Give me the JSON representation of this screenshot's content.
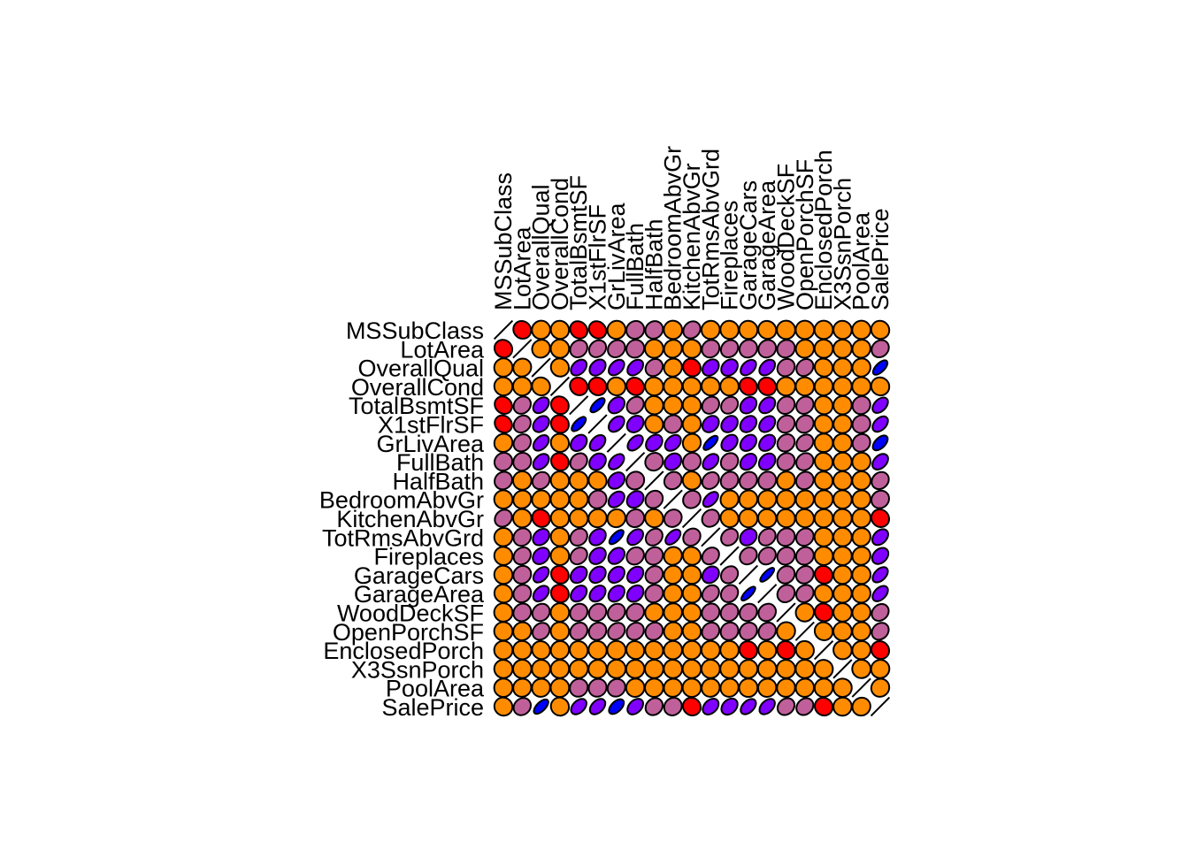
{
  "chart_data": {
    "type": "heatmap",
    "variables": [
      "MSSubClass",
      "LotArea",
      "OverallQual",
      "OverallCond",
      "TotalBsmtSF",
      "X1stFlrSF",
      "GrLivArea",
      "FullBath",
      "HalfBath",
      "BedroomAbvGr",
      "KitchenAbvGr",
      "TotRmsAbvGrd",
      "Fireplaces",
      "GarageCars",
      "GarageArea",
      "WoodDeckSF",
      "OpenPorchSF",
      "EnclosedPorch",
      "X3SsnPorch",
      "PoolArea",
      "SalePrice"
    ],
    "matrix": [
      [
        1.0,
        -0.14,
        0.03,
        -0.06,
        -0.24,
        -0.25,
        0.07,
        0.13,
        0.18,
        -0.02,
        0.28,
        0.04,
        -0.05,
        -0.04,
        -0.1,
        -0.01,
        -0.01,
        -0.01,
        -0.04,
        0.01,
        -0.08
      ],
      [
        -0.14,
        1.0,
        0.11,
        -0.01,
        0.26,
        0.3,
        0.26,
        0.13,
        0.01,
        0.12,
        -0.02,
        0.19,
        0.27,
        0.15,
        0.18,
        0.17,
        0.08,
        -0.02,
        0.02,
        0.08,
        0.26
      ],
      [
        0.03,
        0.11,
        1.0,
        -0.09,
        0.54,
        0.48,
        0.59,
        0.55,
        0.27,
        0.1,
        -0.18,
        0.43,
        0.4,
        0.6,
        0.56,
        0.24,
        0.31,
        -0.11,
        0.03,
        0.07,
        0.79
      ],
      [
        -0.06,
        -0.01,
        -0.09,
        1.0,
        -0.17,
        -0.14,
        -0.08,
        -0.19,
        -0.06,
        0.01,
        -0.09,
        -0.06,
        -0.02,
        -0.19,
        -0.15,
        -0.0,
        -0.03,
        0.07,
        0.03,
        -0.0,
        -0.08
      ],
      [
        -0.24,
        0.26,
        0.54,
        -0.17,
        1.0,
        0.82,
        0.45,
        0.32,
        -0.05,
        0.05,
        -0.07,
        0.29,
        0.34,
        0.43,
        0.49,
        0.23,
        0.25,
        -0.1,
        0.04,
        0.13,
        0.61
      ],
      [
        -0.25,
        0.3,
        0.48,
        -0.14,
        0.82,
        1.0,
        0.57,
        0.38,
        -0.12,
        0.13,
        0.07,
        0.41,
        0.41,
        0.44,
        0.49,
        0.24,
        0.21,
        -0.07,
        0.06,
        0.13,
        0.61
      ],
      [
        0.07,
        0.26,
        0.59,
        -0.08,
        0.45,
        0.57,
        1.0,
        0.63,
        0.42,
        0.52,
        0.1,
        0.83,
        0.46,
        0.47,
        0.47,
        0.25,
        0.33,
        0.01,
        0.02,
        0.17,
        0.71
      ],
      [
        0.13,
        0.13,
        0.55,
        -0.19,
        0.32,
        0.38,
        0.63,
        1.0,
        0.14,
        0.36,
        0.13,
        0.55,
        0.24,
        0.47,
        0.41,
        0.19,
        0.26,
        -0.12,
        0.04,
        0.05,
        0.56
      ],
      [
        0.18,
        0.01,
        0.27,
        -0.06,
        -0.05,
        -0.12,
        0.42,
        0.14,
        1.0,
        0.23,
        -0.07,
        0.34,
        0.2,
        0.22,
        0.16,
        0.11,
        0.2,
        -0.1,
        -0.0,
        0.02,
        0.28
      ],
      [
        -0.02,
        0.12,
        0.1,
        0.01,
        0.05,
        0.13,
        0.52,
        0.36,
        0.23,
        1.0,
        0.2,
        0.68,
        0.11,
        0.09,
        0.07,
        0.05,
        0.09,
        0.04,
        -0.02,
        0.07,
        0.17
      ],
      [
        0.28,
        -0.02,
        -0.18,
        -0.09,
        -0.07,
        0.07,
        0.1,
        0.13,
        -0.07,
        0.2,
        1.0,
        0.26,
        -0.12,
        -0.05,
        -0.06,
        -0.09,
        -0.07,
        0.04,
        -0.02,
        -0.01,
        -0.14
      ],
      [
        0.04,
        0.19,
        0.43,
        -0.06,
        0.29,
        0.41,
        0.83,
        0.55,
        0.34,
        0.68,
        0.26,
        1.0,
        0.33,
        0.36,
        0.34,
        0.17,
        0.23,
        0.0,
        -0.01,
        0.08,
        0.53
      ],
      [
        -0.05,
        0.27,
        0.4,
        -0.02,
        0.34,
        0.41,
        0.46,
        0.24,
        0.2,
        0.11,
        -0.12,
        0.33,
        1.0,
        0.3,
        0.27,
        0.2,
        0.17,
        -0.02,
        0.01,
        0.1,
        0.47
      ],
      [
        -0.04,
        0.15,
        0.6,
        -0.19,
        0.43,
        0.44,
        0.47,
        0.47,
        0.22,
        0.09,
        -0.05,
        0.36,
        0.3,
        1.0,
        0.88,
        0.23,
        0.21,
        -0.15,
        0.04,
        0.02,
        0.64
      ],
      [
        -0.1,
        0.18,
        0.56,
        -0.15,
        0.49,
        0.49,
        0.47,
        0.41,
        0.16,
        0.07,
        -0.06,
        0.34,
        0.27,
        0.88,
        1.0,
        0.22,
        0.24,
        -0.12,
        0.04,
        0.06,
        0.62
      ],
      [
        -0.01,
        0.17,
        0.24,
        -0.0,
        0.23,
        0.24,
        0.25,
        0.19,
        0.11,
        0.05,
        -0.09,
        0.17,
        0.2,
        0.23,
        0.22,
        1.0,
        0.06,
        -0.13,
        -0.03,
        0.07,
        0.32
      ],
      [
        -0.01,
        0.08,
        0.31,
        -0.03,
        0.25,
        0.21,
        0.33,
        0.26,
        0.2,
        0.09,
        -0.07,
        0.23,
        0.17,
        0.21,
        0.24,
        0.06,
        1.0,
        -0.09,
        -0.01,
        0.06,
        0.32
      ],
      [
        -0.01,
        -0.02,
        -0.11,
        0.07,
        -0.1,
        -0.07,
        0.01,
        -0.12,
        -0.1,
        0.04,
        0.04,
        0.0,
        -0.02,
        -0.15,
        -0.12,
        -0.13,
        -0.09,
        1.0,
        -0.04,
        0.05,
        -0.13
      ],
      [
        -0.04,
        0.02,
        0.03,
        0.03,
        0.04,
        0.06,
        0.02,
        0.04,
        -0.0,
        -0.02,
        -0.02,
        -0.01,
        0.01,
        0.04,
        0.04,
        -0.03,
        -0.01,
        -0.04,
        1.0,
        -0.01,
        0.04
      ],
      [
        0.01,
        0.08,
        0.07,
        -0.0,
        0.13,
        0.13,
        0.17,
        0.05,
        0.02,
        0.07,
        -0.01,
        0.08,
        0.1,
        0.02,
        0.06,
        0.07,
        0.06,
        0.05,
        -0.01,
        1.0,
        0.09
      ],
      [
        -0.08,
        0.26,
        0.79,
        -0.08,
        0.61,
        0.61,
        0.71,
        0.56,
        0.28,
        0.17,
        -0.14,
        0.53,
        0.47,
        0.64,
        0.62,
        0.32,
        0.32,
        -0.13,
        0.04,
        0.09,
        1.0
      ]
    ],
    "colors": {
      "strong_negative": "#ff0000",
      "weak": "#ff8c00",
      "positive": "#c0609a",
      "strong_positive": "#8000ff",
      "max": "#0000ff",
      "outline": "#000000"
    },
    "xlabel": "",
    "ylabel": "",
    "title": ""
  }
}
